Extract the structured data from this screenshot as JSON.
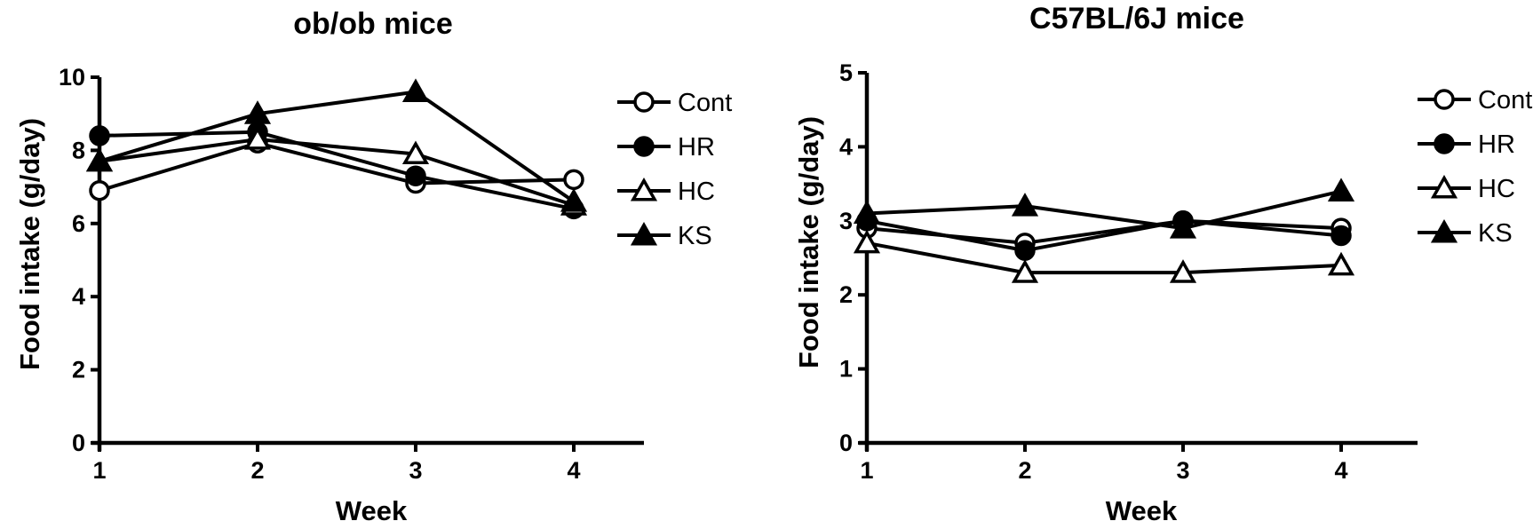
{
  "chart_data": [
    {
      "type": "line",
      "title": "ob/ob mice",
      "xlabel": "Week",
      "ylabel": "Food intake (g/day)",
      "x": [
        1,
        2,
        3,
        4
      ],
      "xticks": [
        "1",
        "2",
        "3",
        "4"
      ],
      "ylim": [
        0,
        10
      ],
      "yticks": [
        "0",
        "2",
        "4",
        "6",
        "8",
        "10"
      ],
      "grid": false,
      "legend_position": "right",
      "series": [
        {
          "name": "Cont",
          "marker": "open-circle",
          "values": [
            6.9,
            8.2,
            7.1,
            7.2
          ]
        },
        {
          "name": "HR",
          "marker": "filled-circle",
          "values": [
            8.4,
            8.5,
            7.3,
            6.4
          ]
        },
        {
          "name": "HC",
          "marker": "open-triangle",
          "values": [
            7.7,
            8.3,
            7.9,
            6.5
          ]
        },
        {
          "name": "KS",
          "marker": "filled-triangle",
          "values": [
            7.7,
            9.0,
            9.6,
            6.6
          ]
        }
      ]
    },
    {
      "type": "line",
      "title": "C57BL/6J mice",
      "xlabel": "Week",
      "ylabel": "Food intake (g/day)",
      "x": [
        1,
        2,
        3,
        4
      ],
      "xticks": [
        "1",
        "2",
        "3",
        "4"
      ],
      "ylim": [
        0,
        5
      ],
      "yticks": [
        "0",
        "1",
        "2",
        "3",
        "4",
        "5"
      ],
      "grid": false,
      "legend_position": "right",
      "series": [
        {
          "name": "Cont",
          "marker": "open-circle",
          "values": [
            2.9,
            2.7,
            3.0,
            2.9
          ]
        },
        {
          "name": "HR",
          "marker": "filled-circle",
          "values": [
            3.0,
            2.6,
            3.0,
            2.8
          ]
        },
        {
          "name": "HC",
          "marker": "open-triangle",
          "values": [
            2.7,
            2.3,
            2.3,
            2.4
          ]
        },
        {
          "name": "KS",
          "marker": "filled-triangle",
          "values": [
            3.1,
            3.2,
            2.9,
            3.4
          ]
        }
      ]
    }
  ],
  "colors": {
    "ink": "#000000",
    "background": "#ffffff"
  }
}
